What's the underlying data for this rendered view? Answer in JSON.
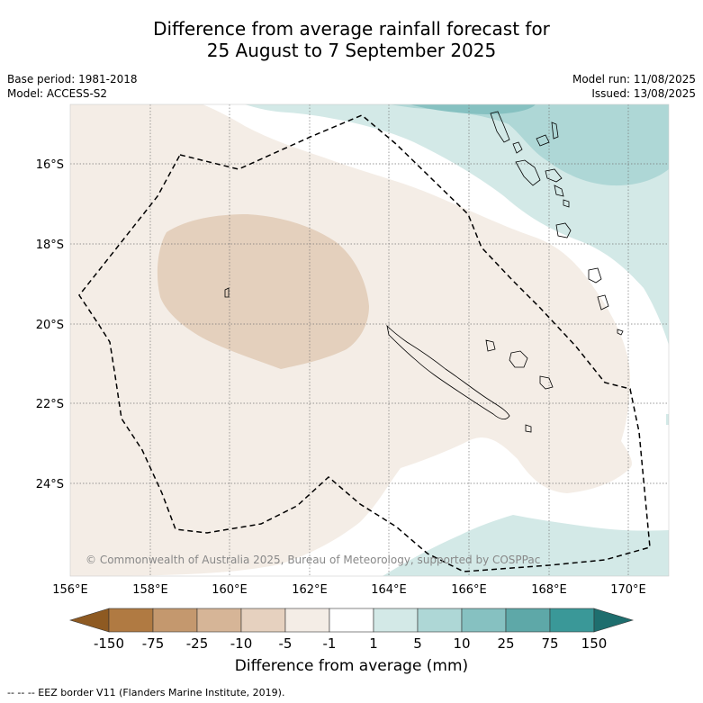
{
  "header": {
    "title_line1": "Difference from average rainfall forecast for",
    "title_line2": "25 August to 7 September 2025",
    "base_period": "Base period: 1981-2018",
    "model": "Model: ACCESS-S2",
    "model_run": "Model run: 11/08/2025",
    "issued": "Issued: 13/08/2025"
  },
  "map": {
    "copyright": "© Commonwealth of Australia 2025, Bureau of Meteorology, supported by COSPPac",
    "lon_labels": [
      "156°E",
      "158°E",
      "160°E",
      "162°E",
      "164°E",
      "166°E",
      "168°E",
      "170°E"
    ],
    "lat_labels": [
      "16°S",
      "18°S",
      "20°S",
      "22°S",
      "24°S"
    ],
    "border_style": "dashed"
  },
  "legend": {
    "title": "Difference from average (mm)",
    "ticks": [
      "-150",
      "-75",
      "-25",
      "-10",
      "-5",
      "-1",
      "1",
      "5",
      "10",
      "25",
      "75",
      "150"
    ],
    "colors": [
      "#8e5a22",
      "#b07a42",
      "#c4986e",
      "#d6b597",
      "#e6d1bf",
      "#f4ede6",
      "#ffffff",
      "#d3e9e7",
      "#aed7d6",
      "#86c1c1",
      "#5ea8a8",
      "#3a9898",
      "#1e6e6e"
    ]
  },
  "footer": {
    "eez_note": "--  --  -- EEZ border V11 (Flanders Marine Institute, 2019)."
  }
}
